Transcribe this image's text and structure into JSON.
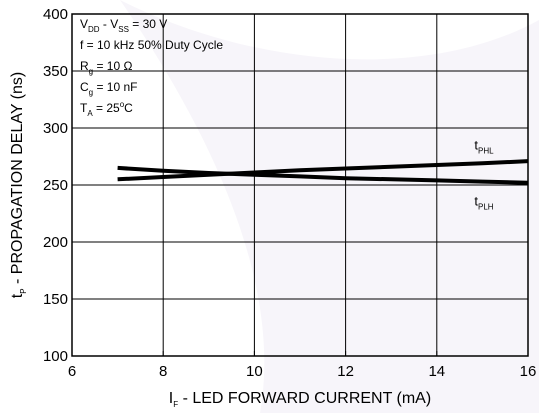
{
  "chart_data": {
    "type": "line",
    "x_range": [
      6,
      16
    ],
    "y_range": [
      100,
      400
    ],
    "x_ticks": [
      6,
      8,
      10,
      12,
      14,
      16
    ],
    "y_ticks": [
      100,
      150,
      200,
      250,
      300,
      350,
      400
    ],
    "grid": true,
    "xlabel": {
      "main": "I",
      "sub": "F",
      "rest": " - LED FORWARD CURRENT (mA)"
    },
    "ylabel": {
      "main": "t",
      "sub": "P",
      "rest": " - PROPAGATION DELAY (ns)"
    },
    "annotations": [
      {
        "parts": [
          [
            "V",
            ""
          ],
          [
            "DD",
            "sub"
          ],
          [
            " - V",
            ""
          ],
          [
            "SS",
            "sub"
          ],
          [
            " = 30 V",
            ""
          ]
        ]
      },
      {
        "parts": [
          [
            "f = 10 kHz 50% Duty Cycle",
            ""
          ]
        ]
      },
      {
        "parts": [
          [
            "R",
            ""
          ],
          [
            "g",
            "sub"
          ],
          [
            " = 10 Ω",
            ""
          ]
        ]
      },
      {
        "parts": [
          [
            "C",
            ""
          ],
          [
            "g",
            "sub"
          ],
          [
            " = 10 nF",
            ""
          ]
        ]
      },
      {
        "parts": [
          [
            "T",
            ""
          ],
          [
            "A",
            "sub"
          ],
          [
            " = 25",
            ""
          ],
          [
            "o",
            "sup"
          ],
          [
            "C",
            ""
          ]
        ]
      }
    ],
    "series": [
      {
        "name": "tPHL",
        "label_main": "t",
        "label_sub": "PHL",
        "label_pos": "above",
        "x": [
          7,
          8,
          9,
          10,
          11,
          12,
          13,
          14,
          15,
          16
        ],
        "y": [
          255,
          257,
          259,
          261,
          263,
          264.5,
          266,
          267.5,
          269,
          271
        ]
      },
      {
        "name": "tPLH",
        "label_main": "t",
        "label_sub": "PLH",
        "label_pos": "below",
        "x": [
          7,
          8,
          9,
          10,
          11,
          12,
          13,
          14,
          15,
          16
        ],
        "y": [
          265,
          262.5,
          260.5,
          259,
          257.5,
          256,
          255,
          254,
          253,
          252
        ]
      }
    ]
  }
}
